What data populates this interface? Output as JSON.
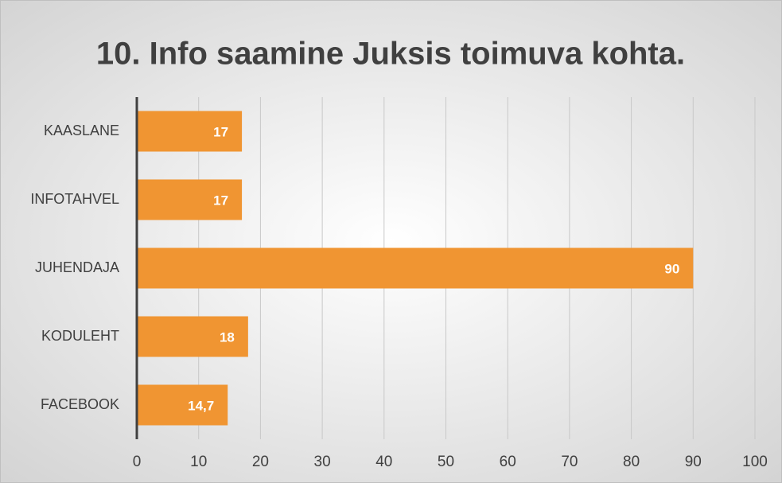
{
  "chart_data": {
    "type": "barh",
    "title": "10. Info saamine Juksis toimuva kohta.",
    "categories": [
      "KAASLANE",
      "INFOTAHVEL",
      "JUHENDAJA",
      "KODULEHT",
      "FACEBOOK"
    ],
    "values": [
      17,
      17,
      90,
      18,
      14.7
    ],
    "value_labels": [
      "17",
      "17",
      "90",
      "18",
      "14,7"
    ],
    "color": "#f09532",
    "xlim": [
      0,
      100
    ],
    "xticks": [
      0,
      10,
      20,
      30,
      40,
      50,
      60,
      70,
      80,
      90,
      100
    ],
    "grid": true
  }
}
